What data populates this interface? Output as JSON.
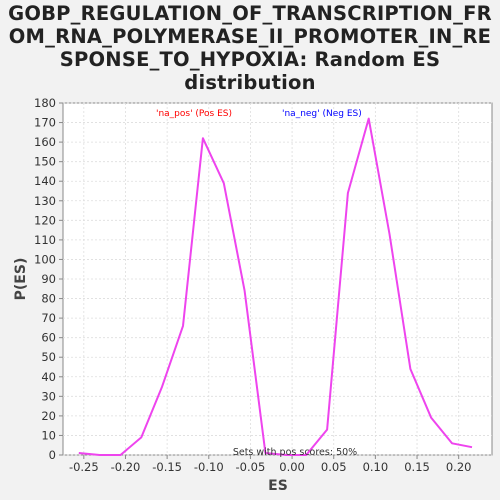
{
  "chart_data": {
    "type": "line",
    "title_lines": [
      "GOBP_REGULATION_OF_TRANSCRIPTION_FR",
      "OM_RNA_POLYMERASE_II_PROMOTER_IN_RE",
      "SPONSE_TO_HYPOXIA: Random ES",
      "distribution"
    ],
    "xlabel": "ES",
    "ylabel": "P(ES)",
    "xlim": [
      -0.275,
      0.24
    ],
    "ylim": [
      0,
      180
    ],
    "x_ticks": [
      "-0.25",
      "-0.20",
      "-0.15",
      "-0.10",
      "-0.05",
      "0.00",
      "0.05",
      "0.10",
      "0.15",
      "0.20"
    ],
    "x_tick_values": [
      -0.25,
      -0.2,
      -0.15,
      -0.1,
      -0.05,
      0.0,
      0.05,
      0.1,
      0.15,
      0.2
    ],
    "y_ticks": [
      0,
      10,
      20,
      30,
      40,
      50,
      60,
      70,
      80,
      90,
      100,
      110,
      120,
      130,
      140,
      150,
      160,
      170,
      180
    ],
    "grid": true,
    "legend": {
      "placement": "top-center",
      "entries": [
        {
          "label": "'na_pos' (Pos ES)",
          "color": "#ff0000"
        },
        {
          "label": "'na_neg' (Neg ES)",
          "color": "#0000ff"
        }
      ]
    },
    "annotation": "Sets with pos scores: 50%",
    "series": [
      {
        "color": "#ee44ee",
        "x": [
          -0.256,
          -0.231,
          -0.206,
          -0.181,
          -0.156,
          -0.131,
          -0.107,
          -0.082,
          -0.057,
          -0.032,
          -0.007,
          0.017,
          0.042,
          0.067,
          0.092,
          0.117,
          0.142,
          0.167,
          0.192,
          0.216
        ],
        "y": [
          1,
          0,
          0,
          9,
          35,
          66,
          162,
          139,
          84,
          1,
          0,
          0,
          13,
          134,
          172,
          113,
          44,
          19,
          6,
          4
        ]
      }
    ]
  }
}
